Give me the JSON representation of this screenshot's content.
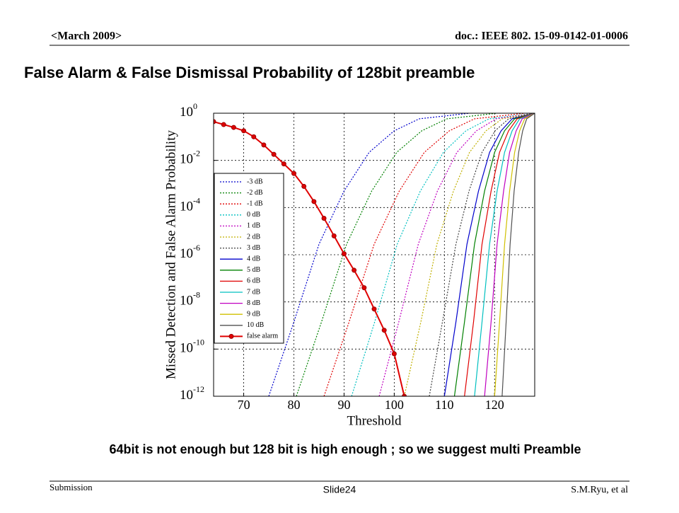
{
  "header": {
    "left": "<March 2009>",
    "right": "doc.: IEEE 802. 15-09-0142-01-0006"
  },
  "title": "False Alarm & False Dismissal Probability of 128bit preamble",
  "caption": "64bit is not enough but 128 bit is high enough ; so we suggest multi Preamble",
  "footer": {
    "left": "Submission",
    "center": "Slide24",
    "right": "S.M.Ryu, et al"
  },
  "chart_data": {
    "type": "line",
    "x_label": "Threshold",
    "y_label": "Missed Detection and False Alarm Probability",
    "y_scale": "log",
    "grid": true,
    "legend": "left",
    "xlim": [
      64,
      128
    ],
    "xticks": [
      70,
      80,
      90,
      100,
      110,
      120
    ],
    "ylim": [
      1e-12,
      1
    ],
    "yticks": [
      {
        "value": 1,
        "label": "10^0"
      },
      {
        "value": 0.01,
        "label": "10^-2"
      },
      {
        "value": 0.0001,
        "label": "10^-4"
      },
      {
        "value": 1e-06,
        "label": "10^-6"
      },
      {
        "value": 1e-08,
        "label": "10^-8"
      },
      {
        "value": 1e-10,
        "label": "10^-10"
      },
      {
        "value": 1e-12,
        "label": "10^-12"
      }
    ],
    "series": [
      {
        "name": "-3 dB",
        "color": "#0000cc",
        "style": "dotted",
        "x": [
          75,
          80,
          85,
          90,
          95,
          100,
          105,
          115
        ],
        "values": [
          1e-12,
          1.4e-09,
          2.8e-06,
          0.0005,
          0.022,
          0.18,
          0.58,
          1
        ]
      },
      {
        "name": "-2 dB",
        "color": "#008000",
        "style": "dotted",
        "x": [
          80.5,
          85.5,
          90.5,
          95.5,
          100.5,
          105.5,
          110.5,
          120.5
        ],
        "values": [
          1e-12,
          1.4e-09,
          2.8e-06,
          0.0005,
          0.022,
          0.18,
          0.58,
          1
        ]
      },
      {
        "name": "-1 dB",
        "color": "#e00000",
        "style": "dotted",
        "x": [
          86,
          91,
          96,
          101,
          106,
          111,
          116,
          126
        ],
        "values": [
          1e-12,
          1.4e-09,
          2.8e-06,
          0.0005,
          0.022,
          0.18,
          0.58,
          1
        ]
      },
      {
        "name": "0 dB",
        "color": "#00c0c0",
        "style": "dotted",
        "x": [
          91.5,
          96.1,
          100.6,
          105.2,
          109.8,
          114.3,
          118.9,
          128
        ],
        "values": [
          1e-12,
          1.4e-09,
          2.8e-06,
          0.0005,
          0.022,
          0.18,
          0.58,
          1
        ]
      },
      {
        "name": "1 dB",
        "color": "#c000c0",
        "style": "dotted",
        "x": [
          97,
          100.9,
          104.8,
          108.6,
          112.5,
          116.4,
          120.3,
          128
        ],
        "values": [
          1e-12,
          1.4e-09,
          2.8e-06,
          0.0005,
          0.022,
          0.18,
          0.58,
          1
        ]
      },
      {
        "name": "2 dB",
        "color": "#c0b000",
        "style": "dotted",
        "x": [
          102,
          105.3,
          108.5,
          111.8,
          115,
          118.3,
          121.5,
          128
        ],
        "values": [
          1e-12,
          1.4e-09,
          2.8e-06,
          0.0005,
          0.022,
          0.18,
          0.58,
          1
        ]
      },
      {
        "name": "3 dB",
        "color": "#404040",
        "style": "dotted",
        "x": [
          107,
          109.6,
          112.3,
          114.9,
          117.5,
          120.1,
          122.8,
          128
        ],
        "values": [
          1e-12,
          1.4e-09,
          2.8e-06,
          0.0005,
          0.022,
          0.18,
          0.58,
          1
        ]
      },
      {
        "name": "4 dB",
        "color": "#0000cc",
        "style": "solid",
        "x": [
          110,
          112.3,
          114.5,
          116.8,
          119,
          121.3,
          123.5,
          128
        ],
        "values": [
          1e-12,
          1.4e-09,
          2.8e-06,
          0.0005,
          0.022,
          0.18,
          0.58,
          1
        ]
      },
      {
        "name": "5 dB",
        "color": "#008000",
        "style": "solid",
        "x": [
          112,
          114,
          116,
          118,
          120,
          122,
          124,
          128
        ],
        "values": [
          1e-12,
          1.4e-09,
          2.8e-06,
          0.0005,
          0.022,
          0.18,
          0.58,
          1
        ]
      },
      {
        "name": "6 dB",
        "color": "#e00000",
        "style": "solid",
        "x": [
          114,
          115.8,
          117.5,
          119.3,
          121,
          122.8,
          124.5,
          128
        ],
        "values": [
          1e-12,
          1.4e-09,
          2.8e-06,
          0.0005,
          0.022,
          0.18,
          0.58,
          1
        ]
      },
      {
        "name": "7 dB",
        "color": "#00c0c0",
        "style": "solid",
        "x": [
          116,
          117.5,
          119,
          120.5,
          122,
          123.5,
          125,
          128
        ],
        "values": [
          1e-12,
          1.4e-09,
          2.8e-06,
          0.0005,
          0.022,
          0.18,
          0.58,
          1
        ]
      },
      {
        "name": "8 dB",
        "color": "#c000c0",
        "style": "solid",
        "x": [
          118,
          119.3,
          120.5,
          121.8,
          123,
          124.3,
          125.5,
          128
        ],
        "values": [
          1e-12,
          1.4e-09,
          2.8e-06,
          0.0005,
          0.022,
          0.18,
          0.58,
          1
        ]
      },
      {
        "name": "9 dB",
        "color": "#d0c000",
        "style": "solid",
        "x": [
          120,
          121,
          122,
          123,
          124,
          125,
          126,
          128
        ],
        "values": [
          1e-12,
          1.4e-09,
          2.8e-06,
          0.0005,
          0.022,
          0.18,
          0.58,
          1
        ]
      },
      {
        "name": "10 dB",
        "color": "#505050",
        "style": "solid",
        "x": [
          121.5,
          122.3,
          123.1,
          123.9,
          124.8,
          125.6,
          126.4,
          128
        ],
        "values": [
          1e-12,
          1.4e-09,
          2.8e-06,
          0.0005,
          0.022,
          0.18,
          0.58,
          1
        ]
      },
      {
        "name": "false alarm",
        "color": "#e00000",
        "style": "solid",
        "marker": "o",
        "x": [
          64,
          66,
          68,
          70,
          72,
          74,
          76,
          78,
          80,
          82,
          84,
          86,
          88,
          90,
          92,
          94,
          96,
          98,
          100,
          102
        ],
        "values": [
          0.44,
          0.33,
          0.25,
          0.18,
          0.1,
          0.045,
          0.018,
          0.0071,
          0.0028,
          0.00079,
          0.00018,
          3.5e-05,
          6.3e-06,
          1.1e-06,
          2.2e-07,
          4e-08,
          5e-09,
          6.3e-10,
          6.3e-11,
          1e-12
        ]
      }
    ]
  }
}
